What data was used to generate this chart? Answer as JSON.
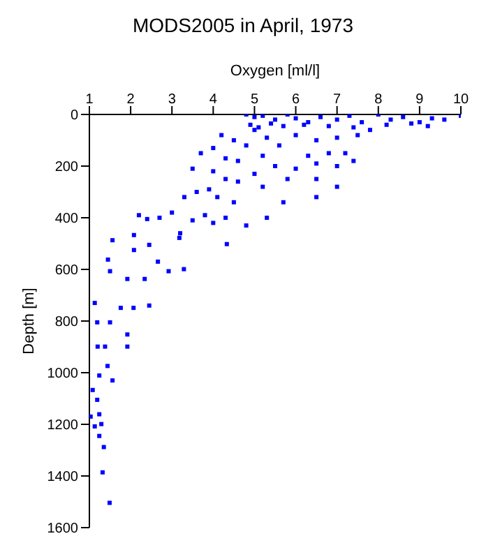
{
  "chart_data": {
    "type": "scatter",
    "title": "MODS2005 in April, 1973",
    "xlabel": "Oxygen [ml/l]",
    "ylabel": "Depth [m]",
    "xlim": [
      1,
      10
    ],
    "xticks": [
      1,
      2,
      3,
      4,
      5,
      6,
      7,
      8,
      9,
      10
    ],
    "ylim": [
      1600,
      0
    ],
    "yticks": [
      0,
      200,
      400,
      600,
      800,
      1000,
      1200,
      1400,
      1600
    ],
    "marker": "square",
    "grid": false,
    "legend": false,
    "series": [
      {
        "color": "#0000ff",
        "x": [
          4.8,
          5.0,
          5.2,
          5.5,
          5.8,
          6.0,
          6.3,
          6.6,
          7.0,
          7.3,
          7.6,
          8.0,
          8.3,
          8.6,
          9.0,
          9.3,
          9.6,
          10.0,
          4.9,
          5.1,
          5.4,
          5.7,
          6.2,
          6.8,
          7.4,
          8.2,
          8.8,
          9.2,
          4.2,
          4.5,
          4.8,
          5.0,
          5.3,
          5.6,
          6.0,
          6.5,
          7.0,
          7.5,
          7.8,
          3.7,
          4.0,
          4.3,
          4.6,
          5.2,
          5.5,
          6.3,
          6.8,
          7.2,
          7.4,
          6.5,
          7.0,
          6.0,
          3.5,
          4.0,
          4.3,
          4.6,
          5.0,
          5.2,
          5.8,
          6.5,
          6.5,
          7.0,
          5.7,
          3.6,
          3.9,
          4.1,
          4.5,
          3.3,
          3.0,
          2.7,
          2.2,
          2.4,
          3.5,
          3.8,
          4.3,
          5.3,
          4.8,
          4.0,
          3.2,
          1.56,
          2.08,
          2.45,
          3.18,
          4.33,
          3.29,
          2.92,
          2.66,
          1.92,
          1.5,
          2.34,
          2.45,
          2.07,
          1.76,
          1.13,
          1.19,
          1.5,
          1.92,
          1.92,
          1.2,
          1.38,
          1.44,
          1.56,
          1.24,
          1.08,
          1.19,
          1.24,
          1.03,
          1.13,
          1.29,
          1.24,
          1.35,
          1.32,
          1.49,
          2.08,
          1.45
        ],
        "values": [
          0,
          10,
          5,
          20,
          0,
          15,
          30,
          10,
          20,
          5,
          30,
          0,
          20,
          10,
          30,
          15,
          20,
          5,
          40,
          50,
          35,
          45,
          40,
          45,
          50,
          40,
          35,
          45,
          80,
          100,
          120,
          60,
          90,
          120,
          80,
          100,
          90,
          80,
          60,
          150,
          130,
          170,
          180,
          160,
          200,
          160,
          150,
          150,
          180,
          190,
          200,
          210,
          210,
          220,
          250,
          260,
          230,
          280,
          250,
          250,
          320,
          280,
          340,
          300,
          290,
          320,
          340,
          320,
          380,
          400,
          390,
          405,
          410,
          390,
          400,
          400,
          430,
          420,
          460,
          487,
          467,
          505,
          478,
          502,
          599,
          607,
          570,
          637,
          607,
          637,
          740,
          749,
          749,
          730,
          805,
          805,
          852,
          899,
          899,
          899,
          974,
          1030,
          1011,
          1067,
          1105,
          1161,
          1170,
          1208,
          1199,
          1245,
          1288,
          1386,
          1504,
          525,
          562
        ]
      }
    ]
  }
}
